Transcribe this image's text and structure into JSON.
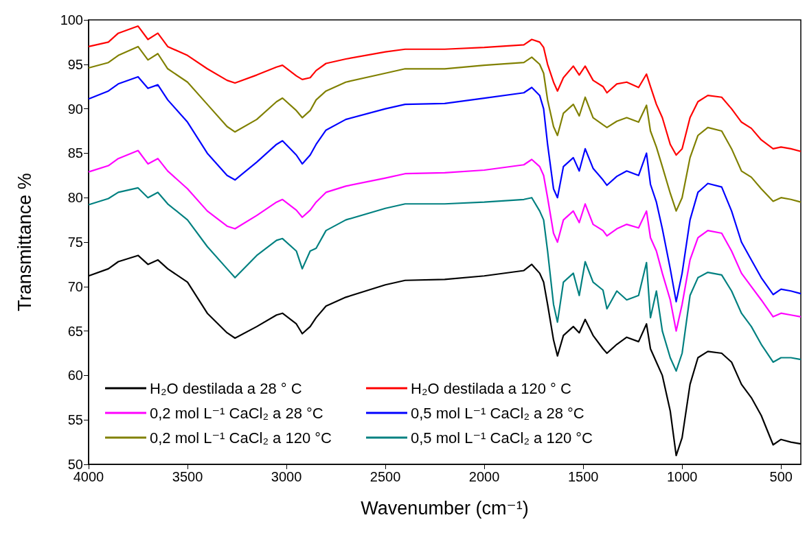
{
  "chart_data": {
    "type": "line",
    "xlabel": "Wavenumber (cm⁻¹)",
    "ylabel": "Transmittance %",
    "x": [
      4000,
      3900,
      3850,
      3750,
      3700,
      3650,
      3600,
      3500,
      3400,
      3300,
      3260,
      3150,
      3050,
      3020,
      2950,
      2920,
      2880,
      2850,
      2800,
      2700,
      2500,
      2400,
      2200,
      2000,
      1800,
      1760,
      1720,
      1700,
      1680,
      1650,
      1630,
      1600,
      1550,
      1520,
      1490,
      1450,
      1400,
      1380,
      1330,
      1280,
      1220,
      1180,
      1160,
      1130,
      1100,
      1060,
      1030,
      1000,
      960,
      920,
      870,
      800,
      750,
      700,
      650,
      600,
      540,
      500,
      450,
      400
    ],
    "xlim": [
      4000,
      400
    ],
    "xticks": [
      4000,
      3500,
      3000,
      2500,
      2000,
      1500,
      1000,
      500
    ],
    "ylim": [
      50,
      100
    ],
    "yticks": [
      50,
      55,
      60,
      65,
      70,
      75,
      80,
      85,
      90,
      95,
      100
    ],
    "legend": "bottom left",
    "series": [
      {
        "name": "H₂O destilada a 28 ° C",
        "color": "#000000",
        "values": [
          71.2,
          72,
          72.8,
          73.5,
          72.5,
          73,
          72,
          70.5,
          67,
          64.8,
          64.2,
          65.5,
          66.8,
          67,
          65.8,
          64.7,
          65.5,
          66.5,
          67.8,
          68.8,
          70.2,
          70.7,
          70.8,
          71.2,
          71.8,
          72.5,
          71.5,
          70.5,
          68,
          64,
          62.2,
          64.5,
          65.5,
          64.8,
          66.3,
          64.5,
          63,
          62.5,
          63.5,
          64.3,
          63.8,
          65.8,
          63,
          61.5,
          60,
          56,
          51,
          53,
          59,
          62,
          62.7,
          62.5,
          61.5,
          59,
          57.5,
          55.5,
          52.2,
          52.8,
          52.5,
          52.3
        ]
      },
      {
        "name": "H₂O destilada a 120 ° C",
        "color": "#ff0000",
        "values": [
          97,
          97.5,
          98.5,
          99.3,
          97.8,
          98.5,
          97,
          96,
          94.5,
          93.2,
          92.9,
          93.8,
          94.7,
          94.9,
          93.7,
          93.3,
          93.5,
          94.3,
          95.1,
          95.6,
          96.4,
          96.7,
          96.7,
          96.9,
          97.2,
          97.8,
          97.5,
          96.9,
          95,
          93,
          92,
          93.5,
          94.8,
          93.8,
          94.8,
          93.2,
          92.5,
          91.8,
          92.8,
          93,
          92.4,
          93.9,
          92.5,
          90.5,
          89,
          86,
          84.8,
          85.5,
          89,
          90.8,
          91.5,
          91.3,
          90,
          88.5,
          87.8,
          86.5,
          85.5,
          85.7,
          85.5,
          85.2
        ]
      },
      {
        "name": "0,2 mol L⁻¹ CaCl₂ a 28 °C",
        "color": "#ff00ff",
        "values": [
          82.9,
          83.6,
          84.4,
          85.3,
          83.8,
          84.4,
          83,
          81,
          78.5,
          76.8,
          76.5,
          78,
          79.5,
          79.8,
          78.6,
          77.8,
          78.6,
          79.5,
          80.6,
          81.3,
          82.2,
          82.7,
          82.8,
          83.1,
          83.7,
          84.3,
          83.5,
          82.5,
          80,
          76,
          75,
          77.5,
          78.5,
          77.2,
          79.3,
          77,
          76.3,
          75.7,
          76.5,
          77,
          76.6,
          78.5,
          75.5,
          74,
          71.5,
          68.5,
          65,
          68,
          73,
          75.5,
          76.3,
          76,
          74,
          71.5,
          70,
          68.5,
          66.6,
          67,
          66.8,
          66.6
        ]
      },
      {
        "name": "0,5 mol L⁻¹ CaCl₂ a 28 °C",
        "color": "#0000ff",
        "values": [
          91.1,
          92,
          92.8,
          93.6,
          92.3,
          92.7,
          91,
          88.5,
          85,
          82.5,
          82,
          84,
          86,
          86.4,
          84.8,
          83.8,
          84.8,
          86,
          87.6,
          88.8,
          90,
          90.5,
          90.6,
          91.2,
          91.8,
          92.4,
          91.5,
          90,
          86,
          81,
          80,
          83.5,
          84.5,
          83,
          85.5,
          83.3,
          82,
          81.4,
          82.4,
          83,
          82.5,
          85,
          81.5,
          79.5,
          76.5,
          72,
          68.3,
          71.5,
          77.5,
          80.6,
          81.6,
          81.2,
          78.5,
          75,
          73,
          71,
          69.1,
          69.7,
          69.5,
          69.2
        ]
      },
      {
        "name": "0,2 mol L⁻¹ CaCl₂ a 120 °C",
        "color": "#808000",
        "values": [
          94.6,
          95.2,
          96,
          97,
          95.5,
          96.2,
          94.5,
          93,
          90.5,
          88,
          87.4,
          88.8,
          90.8,
          91.2,
          89.8,
          89,
          89.8,
          91,
          92,
          93,
          94,
          94.5,
          94.5,
          94.9,
          95.2,
          95.8,
          95,
          94,
          91,
          88,
          87,
          89.5,
          90.5,
          89.2,
          91.3,
          89,
          88.2,
          87.9,
          88.6,
          89,
          88.5,
          90.4,
          87.5,
          85.7,
          83.5,
          80.5,
          78.5,
          80,
          84.5,
          87,
          87.9,
          87.5,
          85.5,
          83,
          82.3,
          81,
          79.6,
          80,
          79.8,
          79.5
        ]
      },
      {
        "name": "0,5 mol L⁻¹ CaCl₂ a 120 °C",
        "color": "#008080",
        "values": [
          79.2,
          79.9,
          80.6,
          81.1,
          80,
          80.6,
          79.3,
          77.5,
          74.5,
          72,
          71,
          73.5,
          75.2,
          75.4,
          74,
          72,
          74,
          74.3,
          76.3,
          77.5,
          78.8,
          79.3,
          79.3,
          79.5,
          79.8,
          80,
          78.5,
          77.5,
          74,
          68,
          66,
          70.5,
          71.5,
          69,
          72.8,
          70.5,
          69.6,
          67.5,
          69.5,
          68.5,
          69,
          72.7,
          66.5,
          69.5,
          65,
          62,
          60.5,
          62.5,
          69,
          71,
          71.6,
          71.3,
          69.5,
          67,
          65.5,
          63.5,
          61.5,
          62,
          62,
          61.8
        ]
      }
    ]
  }
}
